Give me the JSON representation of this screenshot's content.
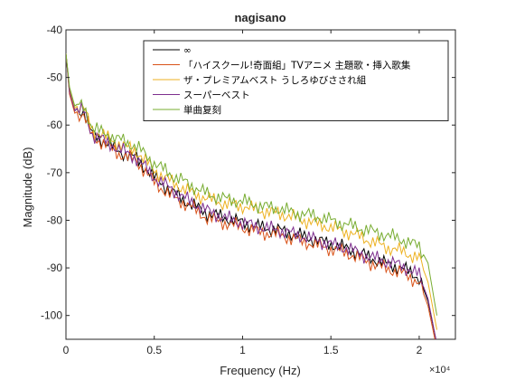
{
  "chart_data": {
    "type": "line",
    "title": "nagisano",
    "xlabel": "Frequency (Hz)",
    "ylabel": "Magnitude (dB)",
    "xlim": [
      0,
      22050
    ],
    "ylim": [
      -105,
      -40
    ],
    "x_tick_values": [
      0,
      5000,
      10000,
      15000,
      20000
    ],
    "x_tick_labels": [
      "0",
      "0.5",
      "1",
      "1.5",
      "2"
    ],
    "x_exponent_label": "×10⁴",
    "y_tick_values": [
      -100,
      -90,
      -80,
      -70,
      -60,
      -50,
      -40
    ],
    "y_tick_labels": [
      "-100",
      "-90",
      "-80",
      "-70",
      "-60",
      "-50",
      "-40"
    ],
    "grid": false,
    "legend_location": "top-right",
    "x": [
      0,
      200,
      500,
      1000,
      1500,
      2000,
      3000,
      4000,
      5000,
      6000,
      7000,
      8000,
      9000,
      10000,
      11000,
      12000,
      13000,
      14000,
      15000,
      16000,
      17000,
      18000,
      19000,
      20000,
      20500,
      21000
    ],
    "series": [
      {
        "name": "∞",
        "color": "#000000",
        "values": [
          -45,
          -53,
          -57,
          -57,
          -62,
          -63,
          -65.5,
          -67,
          -71,
          -74,
          -76.5,
          -78.5,
          -79.5,
          -80.5,
          -81.5,
          -82,
          -83,
          -84,
          -85,
          -86,
          -87.5,
          -89,
          -90,
          -92,
          -97,
          -106
        ]
      },
      {
        "name": "「ハイスクール!奇面組」TVアニメ 主題歌・挿入歌集",
        "color": "#d95319",
        "values": [
          -45,
          -53.5,
          -57.5,
          -58,
          -62.5,
          -63.5,
          -66,
          -67.5,
          -72,
          -75,
          -77,
          -79.5,
          -80.5,
          -81.5,
          -82.5,
          -83,
          -84,
          -85,
          -86,
          -87,
          -88.5,
          -90,
          -91,
          -93,
          -98,
          -107
        ]
      },
      {
        "name": "ザ・プレミアムベスト うしろゆびさされ組",
        "color": "#edb120",
        "values": [
          -45,
          -52.5,
          -56.5,
          -56.5,
          -61,
          -62,
          -64,
          -65.5,
          -69.5,
          -72,
          -74,
          -75.5,
          -76.5,
          -77,
          -78,
          -78.5,
          -79.5,
          -80.5,
          -81.5,
          -82.5,
          -84,
          -85.5,
          -86.5,
          -88,
          -93,
          -103
        ]
      },
      {
        "name": "スーパーベスト",
        "color": "#7e2f8e",
        "values": [
          -45,
          -53,
          -57,
          -57,
          -62,
          -63,
          -65,
          -67,
          -71,
          -73.5,
          -76,
          -78,
          -79.5,
          -80.5,
          -81.5,
          -82,
          -83,
          -84,
          -85,
          -86,
          -87.5,
          -88.5,
          -89.5,
          -91.5,
          -96.5,
          -106
        ]
      },
      {
        "name": "単曲复刻",
        "color": "#77ac30",
        "values": [
          -45,
          -52,
          -56,
          -56,
          -60.5,
          -61.5,
          -63,
          -64.5,
          -68,
          -70.5,
          -72.5,
          -74.5,
          -75.5,
          -76,
          -77,
          -77.5,
          -78.5,
          -79,
          -80,
          -81,
          -82,
          -83,
          -84,
          -85.5,
          -89,
          -100
        ]
      }
    ]
  }
}
